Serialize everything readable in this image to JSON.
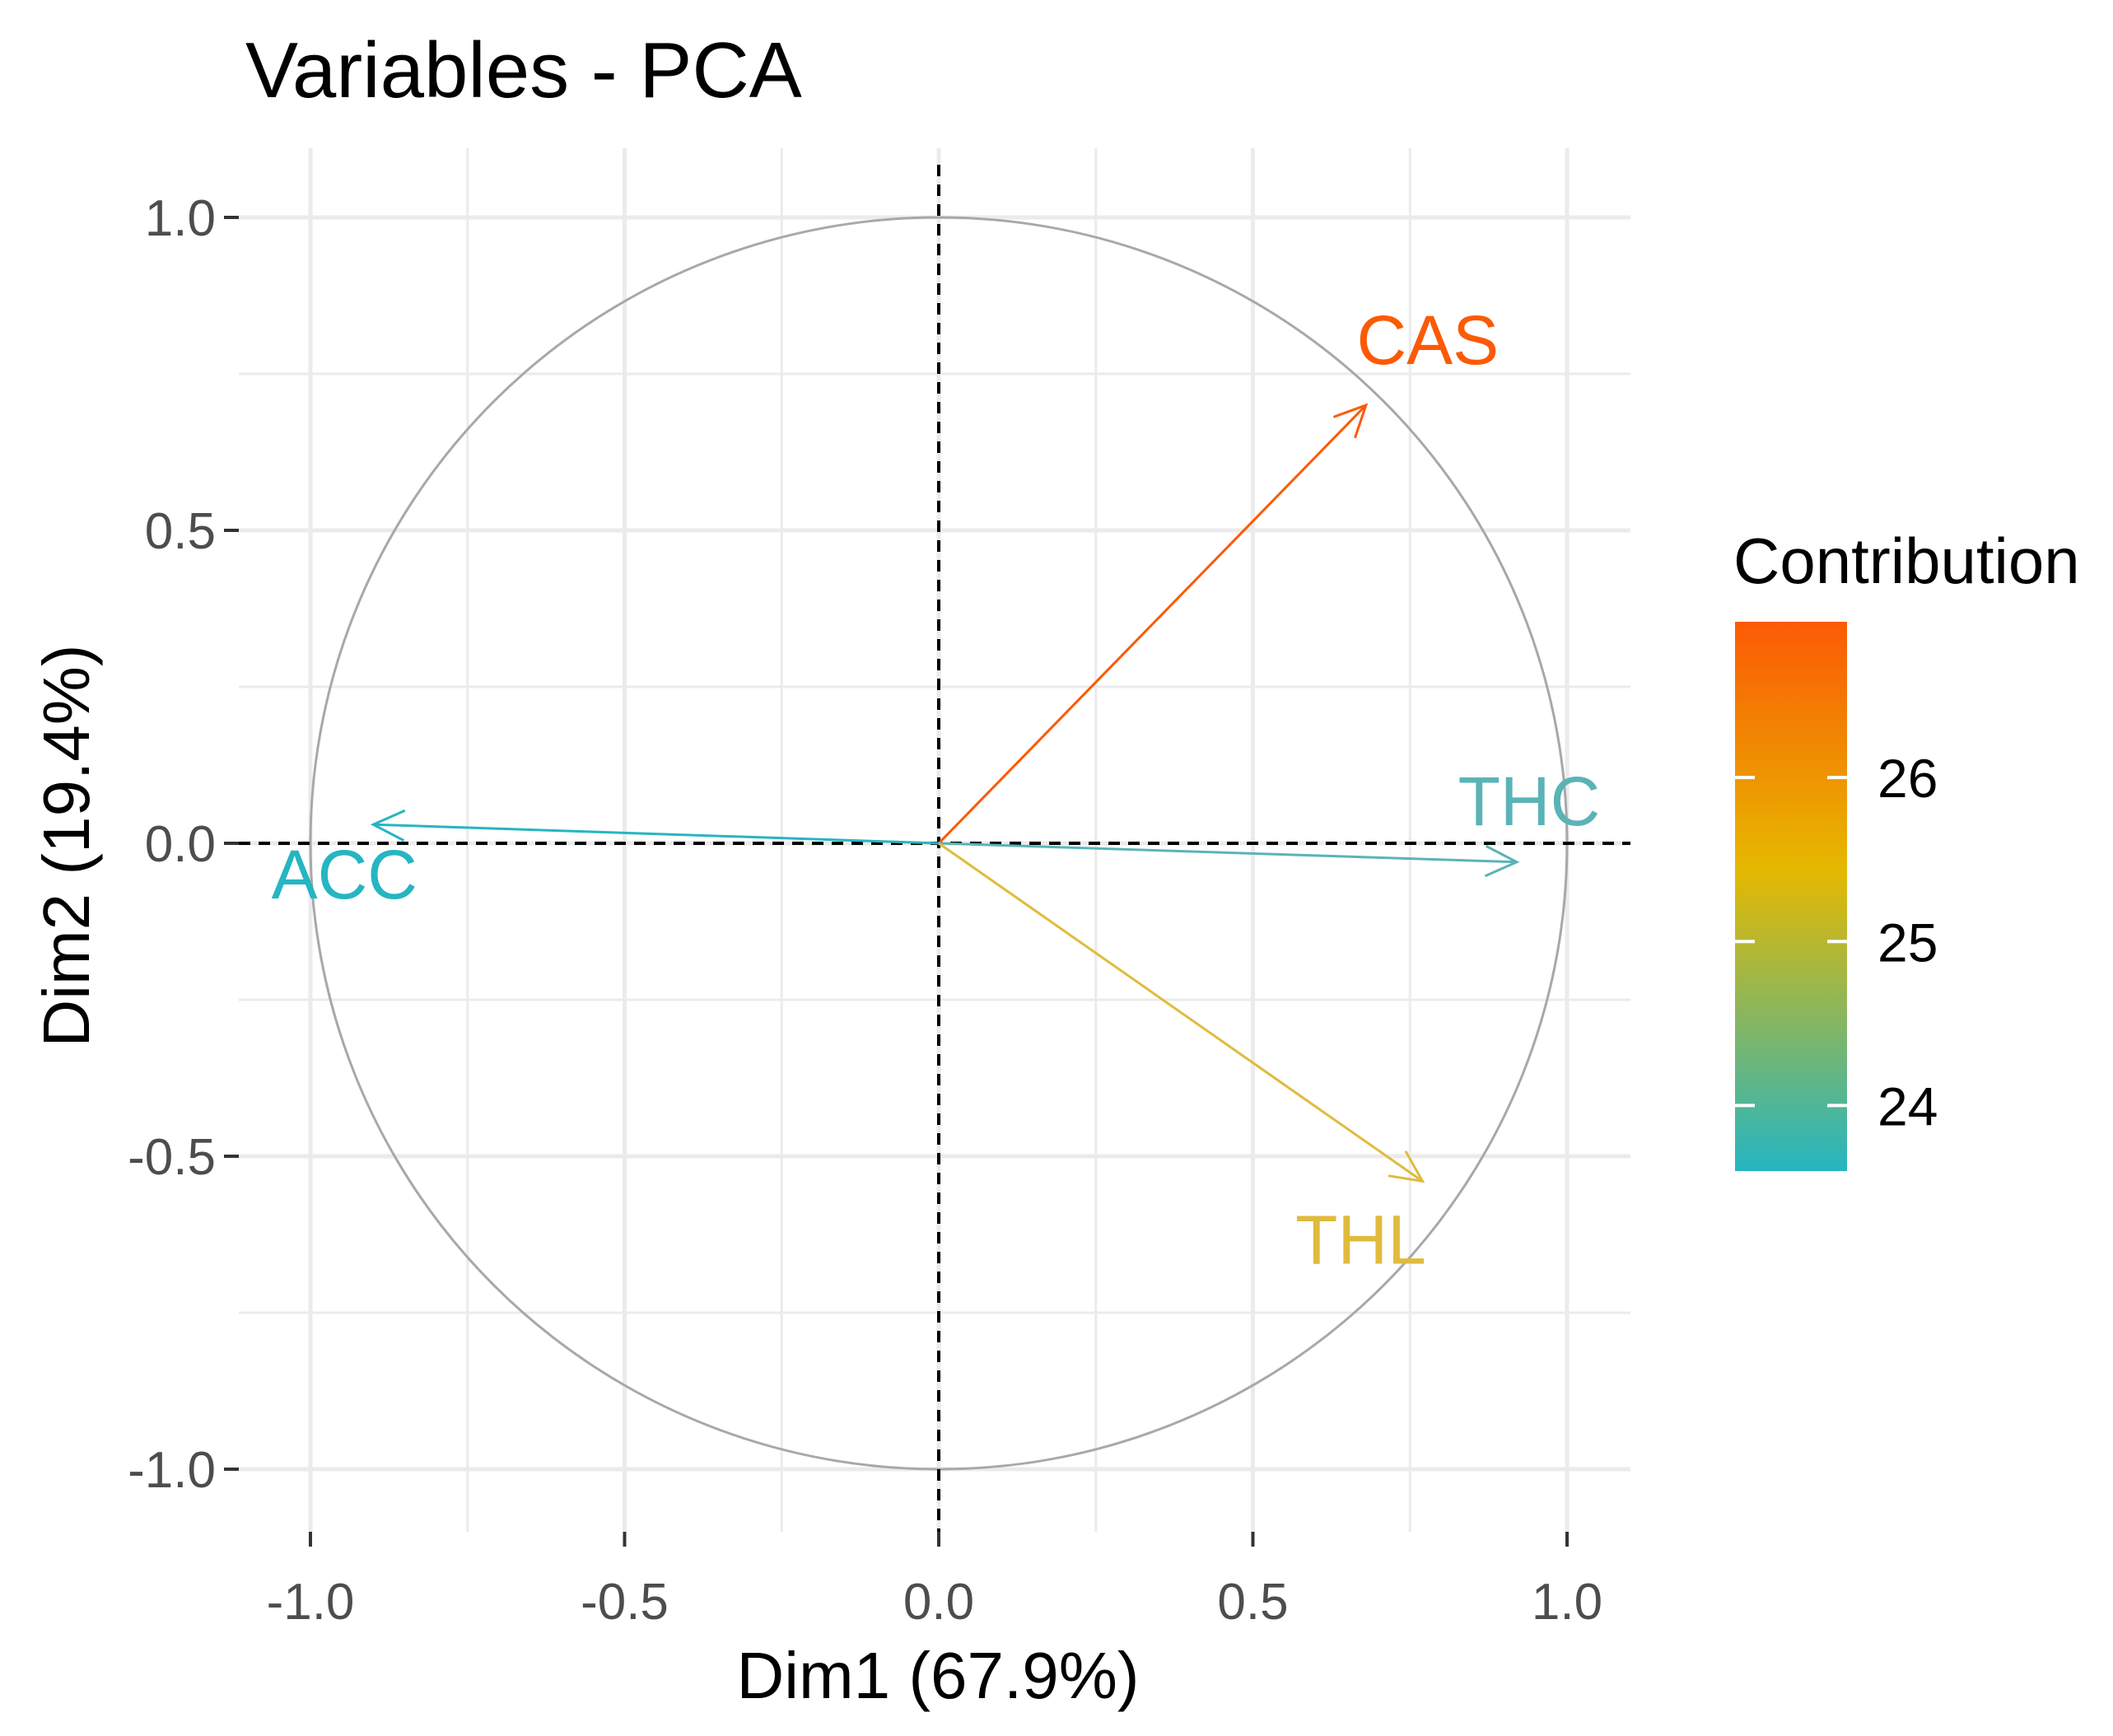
{
  "colors": {
    "low": "#26B5C2",
    "mid": "#E6B800",
    "high": "#FC5A05",
    "grid": "#EBEBEB",
    "circle": "#A8A8A8",
    "axis_text": "#4D4D4D",
    "text": "#000000"
  },
  "chart_data": {
    "type": "scatter",
    "subtype": "pca-variable-correlation-circle",
    "title": "Variables - PCA",
    "xlabel": "Dim1 (67.9%)",
    "ylabel": "Dim2 (19.4%)",
    "xlim": [
      -1.1,
      1.1
    ],
    "ylim": [
      -1.1,
      1.1
    ],
    "x_ticks": [
      -1.0,
      -0.5,
      0.0,
      0.5,
      1.0
    ],
    "y_ticks": [
      -1.0,
      -0.5,
      0.0,
      0.5,
      1.0
    ],
    "x_tick_labels": [
      "-1.0",
      "-0.5",
      "0.0",
      "0.5",
      "1.0"
    ],
    "y_tick_labels": [
      "-1.0",
      "-0.5",
      "0.0",
      "0.5",
      "1.0"
    ],
    "grid": true,
    "unit_circle": true,
    "reference_lines": {
      "x": 0,
      "y": 0,
      "style": "dashed"
    },
    "variables": [
      {
        "name": "CAS",
        "x": 0.68,
        "y": 0.7,
        "contribution": 26.9,
        "color": "#FC5A05"
      },
      {
        "name": "THC",
        "x": 0.92,
        "y": -0.03,
        "contribution": 24.0,
        "color": "#5BB3B6"
      },
      {
        "name": "ACC",
        "x": -0.9,
        "y": 0.03,
        "contribution": 23.6,
        "color": "#26B5C2"
      },
      {
        "name": "THL",
        "x": 0.77,
        "y": -0.54,
        "contribution": 25.5,
        "color": "#E0BB3C"
      }
    ],
    "legend": {
      "title": "Contribution",
      "position": "right",
      "range": [
        23.6,
        26.95
      ],
      "ticks": [
        24,
        25,
        26
      ],
      "tick_labels": [
        "24",
        "25",
        "26"
      ]
    }
  }
}
